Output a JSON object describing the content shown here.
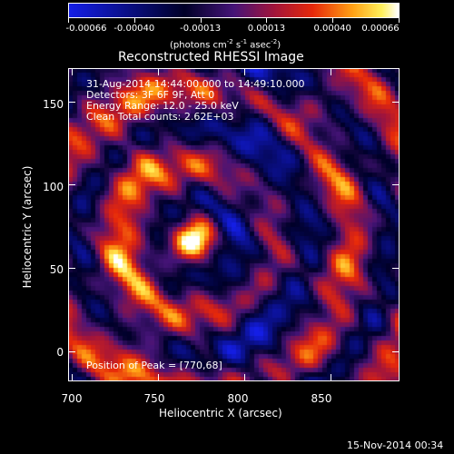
{
  "colorbar": {
    "tick_labels": [
      "-0.00066",
      "-0.00040",
      "-0.00013",
      "0.00013",
      "0.00040",
      "0.00066"
    ],
    "units": "(photons cm",
    "units_exp1": "-2",
    "units_mid": " s",
    "units_exp2": "-1",
    "units_mid2": " asec",
    "units_exp3": "-2",
    "units_end": ")"
  },
  "plot": {
    "title": "Reconstructed RHESSI Image",
    "info_lines": [
      "31-Aug-2014 14:44:00.000 to 14:49:10.000",
      "Detectors: 3F 6F 9F, Att 0",
      "Energy Range: 12.0 - 25.0 keV",
      "Clean     Total counts: 2.62E+03"
    ],
    "peak_label": "Position of Peak = [770,68]",
    "xlabel": "Heliocentric X (arcsec)",
    "ylabel": "Heliocentric Y (arcsec)",
    "x_ticks": [
      "700",
      "750",
      "800",
      "850"
    ],
    "y_ticks": [
      "0",
      "50",
      "100",
      "150"
    ]
  },
  "chart_data": {
    "type": "heatmap",
    "title": "Reconstructed RHESSI Image",
    "xlabel": "Heliocentric X (arcsec)",
    "ylabel": "Heliocentric Y (arcsec)",
    "xlim": [
      698,
      890
    ],
    "ylim": [
      -18,
      170
    ],
    "x_ticks": [
      700,
      750,
      800,
      850
    ],
    "y_ticks": [
      0,
      50,
      100,
      150
    ],
    "colorscale": "rhessi-fire (blue-black-purple-red-yellow-white)",
    "value_range": [
      -0.00066,
      0.00066
    ],
    "peak": [
      770,
      68
    ]
  },
  "footer": {
    "timestamp": "15-Nov-2014 00:34"
  },
  "colors": {
    "background": "#000000",
    "text": "#ffffff"
  }
}
